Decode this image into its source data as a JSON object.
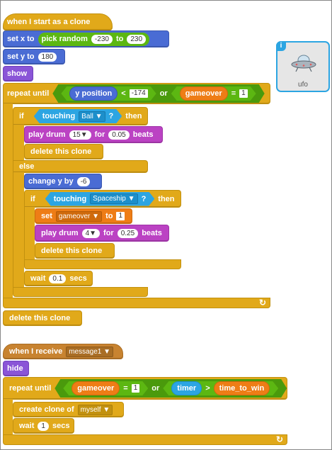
{
  "script1": {
    "hat": "when I start as a clone",
    "set_x": {
      "label": "set x to",
      "reporter": "pick random",
      "from": "-230",
      "to_label": "to",
      "to": "230"
    },
    "set_y": {
      "label": "set y to",
      "value": "180"
    },
    "show": "show",
    "repeat_until": {
      "label": "repeat until",
      "y_position": "y position",
      "lt": "<",
      "lt_value": "-174",
      "or": "or",
      "var": "gameover",
      "eq": "=",
      "eq_value": "1"
    },
    "if1": {
      "label": "if",
      "touching": "touching",
      "target": "Ball",
      "q": "?",
      "then": "then"
    },
    "play_drum1": {
      "label": "play drum",
      "drum": "15",
      "for": "for",
      "beats_value": "0.05",
      "beats": "beats"
    },
    "delete_clone1": "delete this clone",
    "else": "else",
    "change_y": {
      "label": "change y by",
      "value": "-6"
    },
    "if2": {
      "label": "if",
      "touching": "touching",
      "target": "Spaceship",
      "q": "?",
      "then": "then"
    },
    "set_var": {
      "label": "set",
      "var": "gameover",
      "to": "to",
      "value": "1"
    },
    "play_drum2": {
      "label": "play drum",
      "drum": "4",
      "for": "for",
      "beats_value": "0.25",
      "beats": "beats"
    },
    "delete_clone2": "delete this clone",
    "wait": {
      "label": "wait",
      "value": "0.1",
      "secs": "secs"
    },
    "delete_clone3": "delete this clone"
  },
  "script2": {
    "hat": {
      "label": "when I receive",
      "message": "message1"
    },
    "hide": "hide",
    "repeat_until": {
      "label": "repeat until",
      "var": "gameover",
      "eq": "=",
      "eq_value": "1",
      "or": "or",
      "timer": "timer",
      "gt": ">",
      "var2": "time_to_win"
    },
    "create_clone": {
      "label": "create clone of",
      "target": "myself"
    },
    "wait": {
      "label": "wait",
      "value": "1",
      "secs": "secs"
    }
  },
  "sprite": {
    "name": "ufo",
    "info": "i"
  },
  "glyphs": {
    "dropdown": "▼",
    "loop": "↻"
  }
}
